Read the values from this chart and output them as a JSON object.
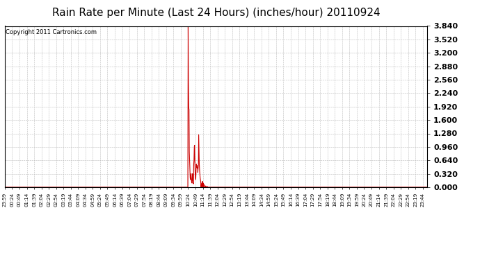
{
  "title": "Rain Rate per Minute (Last 24 Hours) (inches/hour) 20110924",
  "copyright_text": "Copyright 2011 Cartronics.com",
  "line_color": "#cc0000",
  "background_color": "#ffffff",
  "grid_color": "#bbbbbb",
  "yticks": [
    0.0,
    0.32,
    0.64,
    0.96,
    1.28,
    1.6,
    1.92,
    2.24,
    2.56,
    2.88,
    3.2,
    3.52,
    3.84
  ],
  "ymax": 3.84,
  "ymin": 0.0,
  "num_minutes": 1441,
  "rain_events": [
    {
      "minute_index": 625,
      "value": 3.84
    },
    {
      "minute_index": 626,
      "value": 2.5
    },
    {
      "minute_index": 627,
      "value": 1.9
    },
    {
      "minute_index": 628,
      "value": 1.85
    },
    {
      "minute_index": 629,
      "value": 0.85
    },
    {
      "minute_index": 630,
      "value": 0.64
    },
    {
      "minute_index": 631,
      "value": 0.38
    },
    {
      "minute_index": 632,
      "value": 0.22
    },
    {
      "minute_index": 633,
      "value": 0.18
    },
    {
      "minute_index": 634,
      "value": 0.28
    },
    {
      "minute_index": 635,
      "value": 0.32
    },
    {
      "minute_index": 636,
      "value": 0.18
    },
    {
      "minute_index": 637,
      "value": 0.12
    },
    {
      "minute_index": 638,
      "value": 0.1
    },
    {
      "minute_index": 639,
      "value": 0.22
    },
    {
      "minute_index": 640,
      "value": 0.32
    },
    {
      "minute_index": 641,
      "value": 0.18
    },
    {
      "minute_index": 642,
      "value": 0.1
    },
    {
      "minute_index": 643,
      "value": 0.08
    },
    {
      "minute_index": 644,
      "value": 0.55
    },
    {
      "minute_index": 645,
      "value": 0.64
    },
    {
      "minute_index": 646,
      "value": 0.96
    },
    {
      "minute_index": 647,
      "value": 1.0
    },
    {
      "minute_index": 648,
      "value": 0.55
    },
    {
      "minute_index": 649,
      "value": 0.32
    },
    {
      "minute_index": 650,
      "value": 0.22
    },
    {
      "minute_index": 651,
      "value": 0.18
    },
    {
      "minute_index": 652,
      "value": 0.42
    },
    {
      "minute_index": 653,
      "value": 0.55
    },
    {
      "minute_index": 654,
      "value": 0.48
    },
    {
      "minute_index": 655,
      "value": 0.52
    },
    {
      "minute_index": 656,
      "value": 0.45
    },
    {
      "minute_index": 657,
      "value": 0.48
    },
    {
      "minute_index": 658,
      "value": 0.35
    },
    {
      "minute_index": 659,
      "value": 0.45
    },
    {
      "minute_index": 660,
      "value": 0.52
    },
    {
      "minute_index": 661,
      "value": 1.25
    },
    {
      "minute_index": 662,
      "value": 0.85
    },
    {
      "minute_index": 663,
      "value": 0.55
    },
    {
      "minute_index": 664,
      "value": 0.4
    },
    {
      "minute_index": 665,
      "value": 0.3
    },
    {
      "minute_index": 666,
      "value": 0.22
    },
    {
      "minute_index": 667,
      "value": 0.18
    },
    {
      "minute_index": 668,
      "value": 0.12
    },
    {
      "minute_index": 670,
      "value": 0.06
    },
    {
      "minute_index": 672,
      "value": 0.1
    },
    {
      "minute_index": 674,
      "value": 0.14
    },
    {
      "minute_index": 676,
      "value": 0.1
    },
    {
      "minute_index": 678,
      "value": 0.07
    },
    {
      "minute_index": 680,
      "value": 0.05
    },
    {
      "minute_index": 685,
      "value": 0.03
    },
    {
      "minute_index": 690,
      "value": 0.02
    }
  ],
  "xtick_interval": 25,
  "xtick_labels": [
    "23:59",
    "00:24",
    "00:49",
    "01:14",
    "01:39",
    "02:04",
    "02:29",
    "02:54",
    "03:19",
    "03:44",
    "04:09",
    "04:34",
    "04:59",
    "05:24",
    "05:49",
    "06:14",
    "06:39",
    "07:04",
    "07:29",
    "07:54",
    "08:19",
    "08:44",
    "09:09",
    "09:34",
    "09:59",
    "10:24",
    "10:49",
    "11:14",
    "11:39",
    "12:04",
    "12:29",
    "12:54",
    "13:19",
    "13:44",
    "14:09",
    "14:34",
    "14:59",
    "15:24",
    "15:49",
    "16:14",
    "16:39",
    "17:04",
    "17:29",
    "17:54",
    "18:19",
    "18:44",
    "19:09",
    "19:34",
    "19:59",
    "20:24",
    "20:49",
    "21:14",
    "21:39",
    "22:04",
    "22:29",
    "22:54",
    "23:19",
    "23:44"
  ],
  "title_fontsize": 11,
  "copyright_fontsize": 6,
  "ytick_fontsize": 8,
  "xtick_fontsize": 5,
  "border_color": "#000000"
}
